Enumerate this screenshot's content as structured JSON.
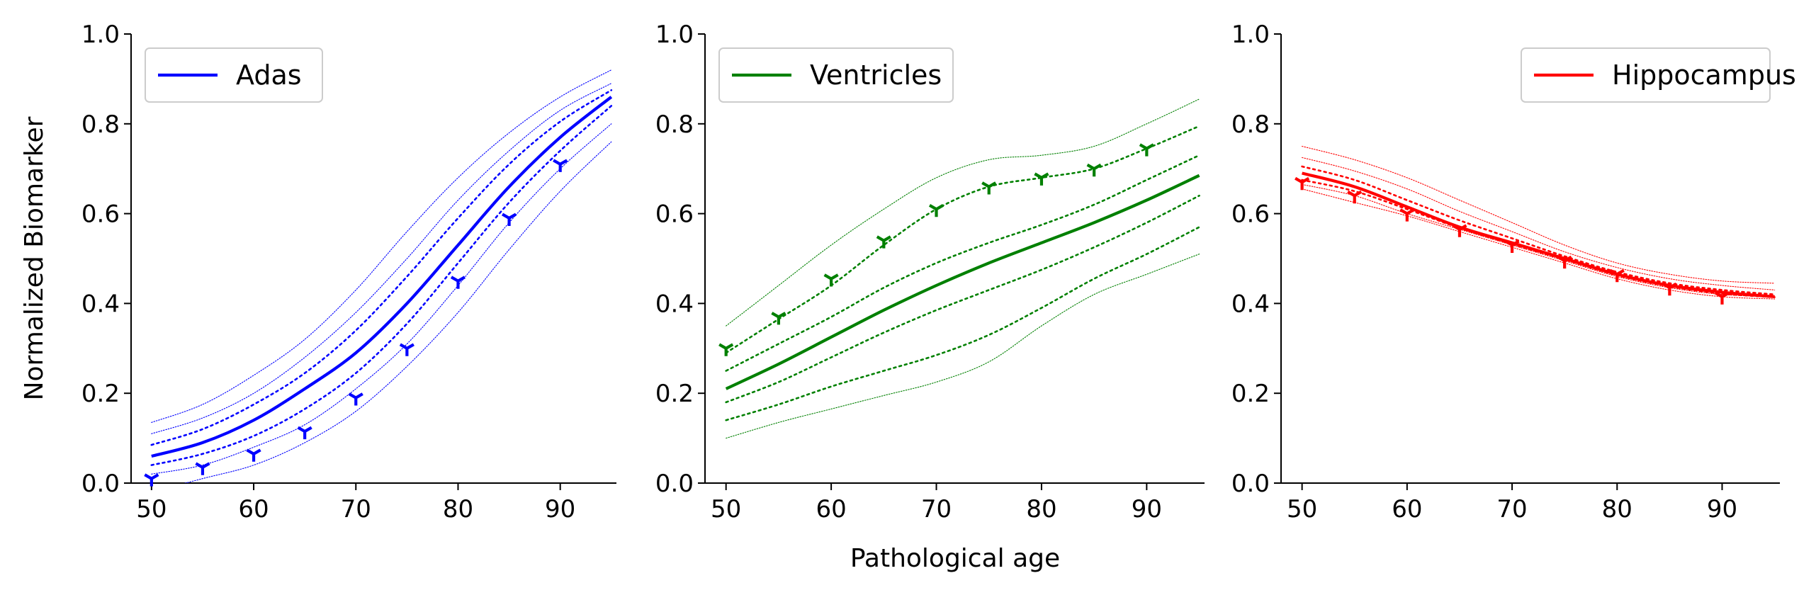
{
  "figure": {
    "ylabel": "Normalized Biomarker",
    "xlabel": "Pathological age"
  },
  "chart_data": [
    {
      "type": "line",
      "legend": "Adas",
      "legend_position": "top-left",
      "color": "#0000ff",
      "xlim": [
        48,
        95.5
      ],
      "ylim": [
        0,
        1.0
      ],
      "xticks": [
        50,
        60,
        70,
        80,
        90
      ],
      "yticks": [
        0.0,
        0.2,
        0.4,
        0.6,
        0.8,
        1.0
      ],
      "grid": false,
      "x": [
        50,
        55,
        60,
        65,
        70,
        75,
        80,
        85,
        90,
        95
      ],
      "mean": [
        0.06,
        0.09,
        0.14,
        0.21,
        0.29,
        0.4,
        0.53,
        0.66,
        0.77,
        0.86
      ],
      "bands": [
        {
          "style": "thin",
          "upper": [
            0.135,
            0.175,
            0.24,
            0.32,
            0.43,
            0.56,
            0.68,
            0.78,
            0.86,
            0.92
          ],
          "lower": [
            -0.02,
            0.01,
            0.04,
            0.09,
            0.16,
            0.26,
            0.38,
            0.52,
            0.65,
            0.76
          ]
        },
        {
          "style": "thin",
          "upper": [
            0.11,
            0.145,
            0.2,
            0.28,
            0.38,
            0.5,
            0.63,
            0.74,
            0.83,
            0.89
          ],
          "lower": [
            0.02,
            0.04,
            0.08,
            0.13,
            0.21,
            0.31,
            0.44,
            0.58,
            0.7,
            0.8
          ]
        },
        {
          "style": "medium",
          "upper": [
            0.085,
            0.12,
            0.175,
            0.245,
            0.34,
            0.46,
            0.59,
            0.71,
            0.805,
            0.875
          ],
          "lower": [
            0.04,
            0.065,
            0.105,
            0.165,
            0.245,
            0.355,
            0.49,
            0.625,
            0.74,
            0.84
          ]
        }
      ],
      "observations": {
        "x": [
          50,
          55,
          60,
          65,
          70,
          75,
          80,
          85,
          90
        ],
        "y": [
          0.01,
          0.035,
          0.065,
          0.115,
          0.19,
          0.3,
          0.45,
          0.59,
          0.71
        ]
      }
    },
    {
      "type": "line",
      "legend": "Ventricles",
      "legend_position": "top-left",
      "color": "#008000",
      "xlim": [
        48,
        95.5
      ],
      "ylim": [
        0,
        1.0
      ],
      "xticks": [
        50,
        60,
        70,
        80,
        90
      ],
      "yticks": [
        0.0,
        0.2,
        0.4,
        0.6,
        0.8,
        1.0
      ],
      "grid": false,
      "x": [
        50,
        55,
        60,
        65,
        70,
        75,
        80,
        85,
        90,
        95
      ],
      "mean": [
        0.21,
        0.265,
        0.325,
        0.385,
        0.44,
        0.49,
        0.535,
        0.58,
        0.63,
        0.685
      ],
      "bands": [
        {
          "style": "thin",
          "upper": [
            0.35,
            0.44,
            0.53,
            0.61,
            0.68,
            0.72,
            0.73,
            0.75,
            0.8,
            0.855
          ],
          "lower": [
            0.1,
            0.135,
            0.165,
            0.195,
            0.225,
            0.27,
            0.35,
            0.42,
            0.465,
            0.51
          ]
        },
        {
          "style": "medium",
          "upper": [
            0.29,
            0.365,
            0.44,
            0.53,
            0.61,
            0.66,
            0.68,
            0.7,
            0.745,
            0.795
          ],
          "lower": [
            0.14,
            0.175,
            0.215,
            0.25,
            0.285,
            0.33,
            0.39,
            0.455,
            0.51,
            0.57
          ]
        },
        {
          "style": "medium",
          "upper": [
            0.25,
            0.31,
            0.37,
            0.435,
            0.49,
            0.535,
            0.575,
            0.62,
            0.675,
            0.73
          ],
          "lower": [
            0.18,
            0.225,
            0.28,
            0.335,
            0.385,
            0.43,
            0.475,
            0.525,
            0.58,
            0.64
          ]
        }
      ],
      "observations": {
        "x": [
          50,
          55,
          60,
          65,
          70,
          75,
          80,
          85,
          90
        ],
        "y": [
          0.3,
          0.37,
          0.455,
          0.54,
          0.61,
          0.66,
          0.68,
          0.7,
          0.745
        ]
      }
    },
    {
      "type": "line",
      "legend": "Hippocampus",
      "legend_position": "top-right",
      "color": "#ff0000",
      "xlim": [
        48,
        95.5
      ],
      "ylim": [
        0,
        1.0
      ],
      "xticks": [
        50,
        60,
        70,
        80,
        90
      ],
      "yticks": [
        0.0,
        0.2,
        0.4,
        0.6,
        0.8,
        1.0
      ],
      "grid": false,
      "x": [
        50,
        55,
        60,
        65,
        70,
        75,
        80,
        85,
        90,
        95
      ],
      "mean": [
        0.69,
        0.66,
        0.615,
        0.57,
        0.535,
        0.5,
        0.465,
        0.44,
        0.425,
        0.415
      ],
      "bands": [
        {
          "style": "thin",
          "upper": [
            0.75,
            0.72,
            0.68,
            0.63,
            0.58,
            0.53,
            0.49,
            0.465,
            0.45,
            0.445
          ],
          "lower": [
            0.655,
            0.625,
            0.595,
            0.56,
            0.525,
            0.49,
            0.455,
            0.43,
            0.415,
            0.41
          ]
        },
        {
          "style": "thin",
          "upper": [
            0.725,
            0.695,
            0.655,
            0.605,
            0.56,
            0.515,
            0.48,
            0.455,
            0.44,
            0.43
          ],
          "lower": [
            0.665,
            0.64,
            0.6,
            0.565,
            0.53,
            0.495,
            0.46,
            0.435,
            0.42,
            0.415
          ]
        },
        {
          "style": "medium",
          "upper": [
            0.705,
            0.675,
            0.63,
            0.585,
            0.545,
            0.505,
            0.47,
            0.445,
            0.43,
            0.42
          ],
          "lower": [
            0.675,
            0.65,
            0.61,
            0.568,
            0.532,
            0.498,
            0.463,
            0.438,
            0.422,
            0.414
          ]
        }
      ],
      "observations": {
        "x": [
          50,
          55,
          60,
          65,
          70,
          75,
          80,
          85,
          90
        ],
        "y": [
          0.67,
          0.64,
          0.6,
          0.565,
          0.53,
          0.495,
          0.465,
          0.435,
          0.415
        ]
      }
    }
  ]
}
